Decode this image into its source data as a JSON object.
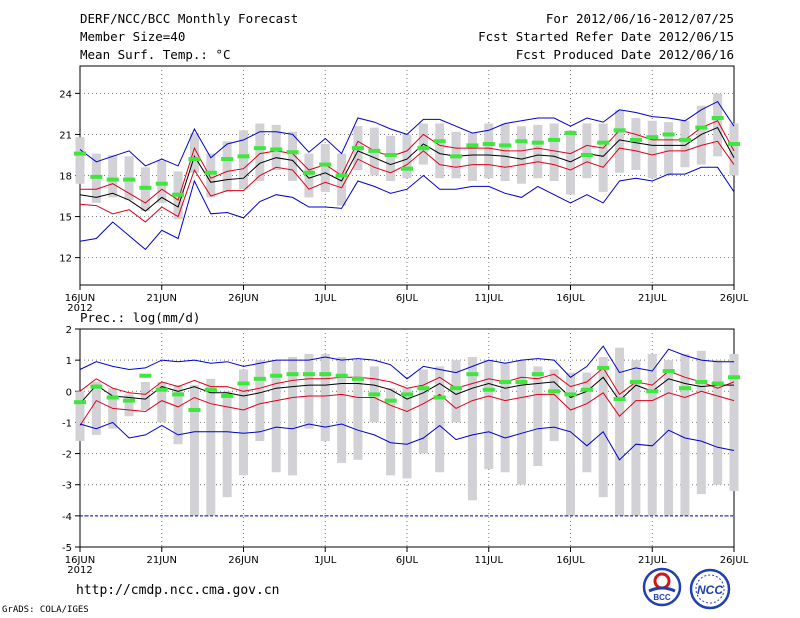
{
  "header": {
    "title": "DERF/NCC/BCC Monthly Forecast",
    "member_size": "Member Size=40",
    "temp_label": "Mean Surf. Temp.: °C",
    "period": "For 2012/06/16-2012/07/25",
    "started": "Fcst Started Refer Date 2012/06/15",
    "produced": "Fcst Produced Date 2012/06/16"
  },
  "footer": {
    "url": "http://cmdp.ncc.cma.gov.cn",
    "grads": "GrADS: COLA/IGES",
    "logo_bcc": "BCC",
    "logo_ncc": "NCC"
  },
  "colors": {
    "max_min": "#0000cc",
    "pct": "#e0001a",
    "mean": "#000000",
    "box": "#d2d2d6",
    "marker": "#3ee63e",
    "grid": "#777777"
  },
  "chart_data": [
    {
      "type": "line",
      "title": "Mean Surf. Temp.: °C",
      "xlabel": "",
      "ylabel": "°C",
      "ylim": [
        10,
        26
      ],
      "yticks": [
        12,
        15,
        18,
        21,
        24
      ],
      "xlim": [
        0,
        40
      ],
      "x_tick_positions": [
        0,
        5,
        10,
        15,
        20,
        25,
        30,
        35,
        40
      ],
      "x_tick_labels": [
        "16JUN",
        "21JUN",
        "26JUN",
        "1JUL",
        "6JUL",
        "11JUL",
        "16JUL",
        "21JUL",
        "26JUL"
      ],
      "x_year_label": "2012",
      "x_start_day": 0,
      "series": [
        {
          "name": "max",
          "values": [
            13.2,
            13.4,
            14.6,
            13.6,
            12.6,
            14.0,
            13.4,
            17.6,
            15.2,
            15.3,
            14.9,
            16.1,
            16.6,
            16.4,
            15.7,
            15.7,
            15.6,
            17.6,
            17.2,
            16.7,
            17.0,
            18.0,
            17.0,
            17.0,
            17.2,
            17.2,
            16.7,
            16.4,
            17.2,
            16.6,
            16.0,
            16.6,
            16.0,
            17.6,
            17.8,
            17.6,
            18.1,
            18.1,
            18.6,
            18.6,
            16.8
          ]
        },
        {
          "name": "pct_low",
          "values": [
            15.9,
            15.8,
            15.2,
            15.5,
            14.6,
            15.7,
            15.0,
            18.4,
            16.5,
            16.9,
            16.9,
            18.0,
            18.6,
            18.4,
            17.0,
            17.5,
            17.1,
            19.2,
            18.6,
            18.2,
            18.8,
            19.8,
            18.8,
            18.6,
            18.8,
            18.8,
            18.6,
            18.8,
            19.0,
            18.8,
            18.4,
            19.0,
            18.6,
            20.0,
            19.8,
            19.5,
            19.8,
            19.8,
            20.2,
            20.5,
            18.8
          ]
        },
        {
          "name": "mean",
          "values": [
            16.6,
            16.4,
            16.7,
            16.2,
            15.4,
            16.4,
            15.7,
            19.4,
            17.5,
            17.7,
            17.8,
            18.9,
            19.3,
            19.1,
            17.8,
            18.2,
            17.6,
            19.8,
            19.3,
            18.8,
            19.2,
            20.3,
            19.6,
            19.4,
            19.5,
            19.5,
            19.4,
            19.2,
            19.5,
            19.4,
            19.0,
            19.6,
            19.4,
            20.6,
            20.4,
            20.2,
            20.2,
            20.2,
            21.0,
            21.5,
            19.3
          ]
        },
        {
          "name": "pct_high",
          "values": [
            17.0,
            17.0,
            17.4,
            16.7,
            16.0,
            17.0,
            16.2,
            20.0,
            17.8,
            18.3,
            18.5,
            19.6,
            19.8,
            19.6,
            18.4,
            18.8,
            18.0,
            20.5,
            19.8,
            19.4,
            19.8,
            21.0,
            20.2,
            20.0,
            20.0,
            20.0,
            19.8,
            19.8,
            20.0,
            19.8,
            19.6,
            20.2,
            20.0,
            21.3,
            21.0,
            20.6,
            20.6,
            20.6,
            21.5,
            22.0,
            19.8
          ]
        },
        {
          "name": "min",
          "values": [
            19.9,
            19.0,
            19.4,
            19.8,
            18.7,
            19.2,
            18.7,
            21.4,
            19.3,
            20.3,
            20.6,
            21.2,
            21.2,
            21.0,
            19.7,
            20.7,
            19.6,
            22.2,
            21.9,
            21.4,
            21.0,
            22.1,
            22.1,
            21.6,
            21.1,
            21.3,
            21.8,
            22.0,
            22.2,
            22.2,
            21.6,
            22.2,
            21.9,
            22.8,
            22.6,
            22.3,
            22.2,
            22.0,
            22.8,
            23.4,
            21.6
          ]
        }
      ],
      "markers": [
        19.6,
        17.9,
        17.7,
        17.7,
        17.1,
        17.4,
        16.6,
        19.2,
        18.2,
        19.2,
        19.4,
        20.0,
        19.9,
        19.7,
        18.2,
        18.8,
        18.0,
        20.0,
        19.8,
        19.5,
        18.5,
        20.0,
        20.5,
        19.4,
        20.2,
        20.3,
        20.2,
        20.5,
        20.4,
        20.6,
        21.1,
        19.5,
        20.4,
        21.3,
        20.6,
        20.8,
        21.0,
        20.6,
        21.5,
        22.2,
        20.3
      ],
      "boxes": [
        [
          17.4,
          20.8
        ],
        [
          16.0,
          19.6
        ],
        [
          16.4,
          19.5
        ],
        [
          16.2,
          19.4
        ],
        [
          15.4,
          18.6
        ],
        [
          16.0,
          19.1
        ],
        [
          14.8,
          18.3
        ],
        [
          18.2,
          21.1
        ],
        [
          16.4,
          19.6
        ],
        [
          16.8,
          20.5
        ],
        [
          17.0,
          21.3
        ],
        [
          17.6,
          21.8
        ],
        [
          18.4,
          21.7
        ],
        [
          17.6,
          21.2
        ],
        [
          16.4,
          19.6
        ],
        [
          16.8,
          20.3
        ],
        [
          15.8,
          19.6
        ],
        [
          18.4,
          21.6
        ],
        [
          18.0,
          21.5
        ],
        [
          17.6,
          20.9
        ],
        [
          17.8,
          21.0
        ],
        [
          18.8,
          21.8
        ],
        [
          17.8,
          21.8
        ],
        [
          17.8,
          21.2
        ],
        [
          17.6,
          21.1
        ],
        [
          17.8,
          21.8
        ],
        [
          17.6,
          21.8
        ],
        [
          17.4,
          21.6
        ],
        [
          17.8,
          21.7
        ],
        [
          17.6,
          21.8
        ],
        [
          16.6,
          21.3
        ],
        [
          17.8,
          21.8
        ],
        [
          16.8,
          21.8
        ],
        [
          18.2,
          22.8
        ],
        [
          18.4,
          22.2
        ],
        [
          17.8,
          22.0
        ],
        [
          18.0,
          21.9
        ],
        [
          18.6,
          22.0
        ],
        [
          18.8,
          23.1
        ],
        [
          19.4,
          24.0
        ],
        [
          18.0,
          21.8
        ]
      ]
    },
    {
      "type": "line",
      "title": "Prec.: log(mm/d)",
      "xlabel": "",
      "ylabel": "log(mm/d)",
      "ylim": [
        -5,
        2
      ],
      "yticks": [
        -5,
        -4,
        -3,
        -2,
        -1,
        0,
        1,
        2
      ],
      "xlim": [
        0,
        40
      ],
      "x_tick_positions": [
        0,
        5,
        10,
        15,
        20,
        25,
        30,
        35,
        40
      ],
      "x_tick_labels": [
        "16JUN",
        "21JUN",
        "26JUN",
        "1JUL",
        "6JUL",
        "11JUL",
        "16JUL",
        "21JUL",
        "26JUL"
      ],
      "x_year_label": "2012",
      "x_start_day": 0,
      "floor_line": -4,
      "series": [
        {
          "name": "max",
          "values": [
            0.7,
            0.95,
            0.8,
            0.7,
            0.75,
            1.0,
            0.95,
            1.0,
            0.9,
            0.95,
            0.8,
            0.9,
            1.0,
            1.0,
            1.0,
            1.1,
            1.0,
            1.05,
            1.0,
            0.85,
            0.4,
            0.8,
            0.7,
            0.6,
            0.8,
            1.0,
            0.9,
            1.0,
            1.05,
            1.0,
            0.45,
            0.8,
            1.45,
            0.6,
            0.75,
            0.65,
            1.35,
            1.15,
            1.0,
            0.95,
            0.95
          ]
        },
        {
          "name": "pct_high",
          "values": [
            0.0,
            0.4,
            0.1,
            -0.05,
            -0.1,
            0.3,
            0.15,
            0.35,
            0.15,
            0.15,
            0.0,
            0.1,
            0.25,
            0.35,
            0.4,
            0.4,
            0.45,
            0.45,
            0.4,
            0.3,
            0.1,
            0.2,
            0.45,
            0.1,
            0.25,
            0.4,
            0.3,
            0.45,
            0.4,
            0.55,
            0.15,
            0.3,
            0.75,
            -0.1,
            0.3,
            0.2,
            0.65,
            0.45,
            0.3,
            0.1,
            0.3
          ]
        },
        {
          "name": "mean",
          "values": [
            -0.4,
            0.2,
            -0.15,
            -0.2,
            -0.25,
            0.15,
            0.0,
            0.15,
            -0.05,
            -0.05,
            -0.15,
            -0.05,
            0.1,
            0.15,
            0.2,
            0.2,
            0.25,
            0.25,
            0.2,
            0.05,
            -0.25,
            -0.05,
            0.25,
            -0.1,
            0.1,
            0.25,
            0.1,
            0.2,
            0.25,
            0.3,
            -0.2,
            0.0,
            0.45,
            -0.3,
            0.2,
            0.0,
            0.4,
            0.25,
            0.15,
            0.2,
            0.2
          ]
        },
        {
          "name": "pct_low",
          "values": [
            -1.1,
            -0.3,
            -0.55,
            -0.6,
            -0.65,
            -0.3,
            -0.5,
            -0.2,
            -0.4,
            -0.5,
            -0.6,
            -0.4,
            -0.3,
            -0.2,
            -0.15,
            -0.15,
            -0.1,
            -0.2,
            -0.2,
            -0.45,
            -0.65,
            -0.4,
            -0.1,
            -0.55,
            -0.3,
            -0.15,
            -0.3,
            -0.2,
            -0.1,
            -0.1,
            -0.6,
            -0.4,
            -0.05,
            -0.8,
            -0.3,
            -0.3,
            -0.05,
            -0.2,
            0.0,
            -0.15,
            -0.3
          ]
        },
        {
          "name": "min",
          "values": [
            -1.05,
            -1.2,
            -1.0,
            -1.5,
            -1.4,
            -1.1,
            -1.4,
            -1.3,
            -1.3,
            -1.3,
            -1.35,
            -1.3,
            -1.15,
            -1.2,
            -1.05,
            -1.15,
            -1.05,
            -1.25,
            -1.4,
            -1.65,
            -1.7,
            -1.5,
            -1.1,
            -1.55,
            -1.4,
            -1.3,
            -1.5,
            -1.35,
            -1.2,
            -1.15,
            -1.3,
            -1.75,
            -1.3,
            -2.2,
            -1.7,
            -1.75,
            -1.25,
            -1.5,
            -1.6,
            -1.8,
            -1.9
          ]
        }
      ],
      "markers": [
        -0.35,
        0.15,
        -0.2,
        -0.3,
        0.5,
        0.05,
        -0.1,
        -0.6,
        0.05,
        -0.15,
        0.25,
        0.4,
        0.5,
        0.55,
        0.55,
        0.55,
        0.5,
        0.4,
        -0.1,
        -0.3,
        -0.1,
        0.1,
        -0.2,
        0.1,
        0.55,
        0.05,
        0.3,
        0.3,
        0.55,
        0.0,
        -0.1,
        0.05,
        0.75,
        -0.25,
        0.3,
        0.0,
        0.65,
        0.1,
        0.3,
        0.25,
        0.45
      ],
      "boxes": [
        [
          -1.6,
          0.0
        ],
        [
          -1.4,
          0.3
        ],
        [
          -1.2,
          0.1
        ],
        [
          -0.8,
          -0.1
        ],
        [
          -0.6,
          0.3
        ],
        [
          -1.0,
          0.3
        ],
        [
          -1.7,
          0.2
        ],
        [
          -4.0,
          0.2
        ],
        [
          -4.0,
          0.4
        ],
        [
          -3.4,
          0.0
        ],
        [
          -2.7,
          0.7
        ],
        [
          -1.6,
          1.0
        ],
        [
          -2.6,
          1.0
        ],
        [
          -2.7,
          1.1
        ],
        [
          -1.2,
          1.2
        ],
        [
          -1.6,
          1.2
        ],
        [
          -2.3,
          1.1
        ],
        [
          -2.2,
          1.0
        ],
        [
          -1.0,
          0.8
        ],
        [
          -2.7,
          0.1
        ],
        [
          -2.8,
          0.1
        ],
        [
          -2.0,
          0.7
        ],
        [
          -2.6,
          0.8
        ],
        [
          -1.0,
          1.0
        ],
        [
          -3.5,
          1.1
        ],
        [
          -2.5,
          1.0
        ],
        [
          -2.6,
          0.9
        ],
        [
          -3.0,
          1.0
        ],
        [
          -2.4,
          0.8
        ],
        [
          -1.6,
          0.7
        ],
        [
          -4.0,
          0.6
        ],
        [
          -2.6,
          0.6
        ],
        [
          -3.4,
          1.1
        ],
        [
          -4.0,
          1.4
        ],
        [
          -4.0,
          1.0
        ],
        [
          -4.0,
          1.2
        ],
        [
          -4.0,
          1.0
        ],
        [
          -4.0,
          1.2
        ],
        [
          -3.3,
          1.3
        ],
        [
          -3.0,
          1.0
        ],
        [
          -3.2,
          1.2
        ]
      ]
    }
  ]
}
